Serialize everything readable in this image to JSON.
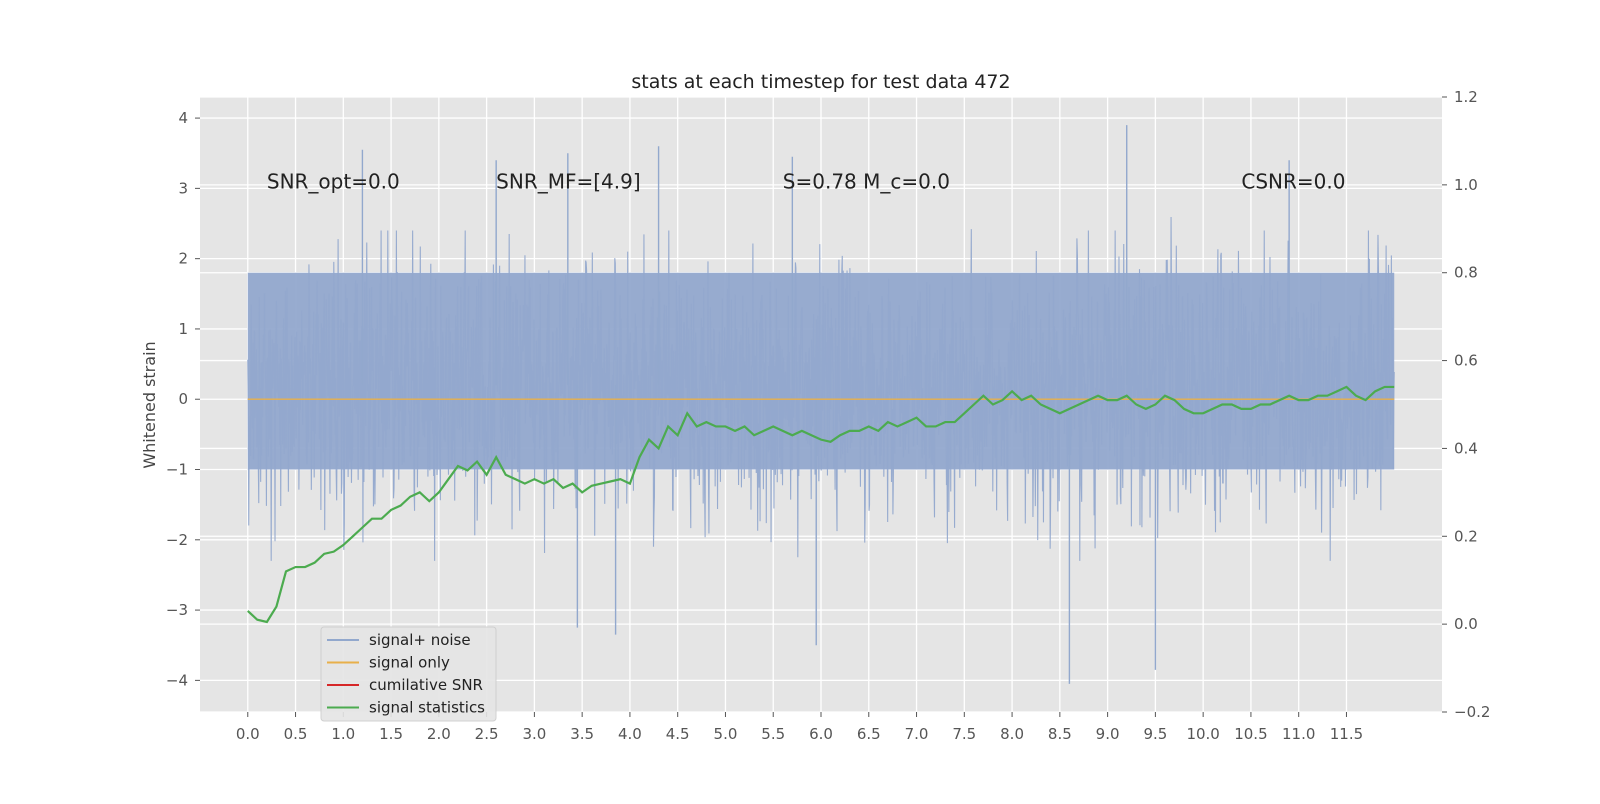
{
  "chart_data": {
    "type": "line",
    "title": "stats at each timestep for test data 472",
    "xlabel": "",
    "ylabel": "Whitened strain",
    "ylabel_right": "",
    "xlim": [
      -0.5,
      12.5
    ],
    "ylim": [
      -4.45,
      4.3
    ],
    "ylim_right": [
      -0.2,
      1.2
    ],
    "x_ticks": [
      "0.0",
      "0.5",
      "1.0",
      "1.5",
      "2.0",
      "2.5",
      "3.0",
      "3.5",
      "4.0",
      "4.5",
      "5.0",
      "5.5",
      "6.0",
      "6.5",
      "7.0",
      "7.5",
      "8.0",
      "8.5",
      "9.0",
      "9.5",
      "10.0",
      "10.5",
      "11.0",
      "11.5"
    ],
    "y_ticks": [
      4,
      3,
      2,
      1,
      0,
      -1,
      -2,
      -3,
      -4
    ],
    "y_ticks_labels": [
      "4",
      "3",
      "2",
      "1",
      "0",
      "−1",
      "−2",
      "−3",
      "−4"
    ],
    "y_right_ticks": [
      1.2,
      1.0,
      0.8,
      0.6,
      0.4,
      0.2,
      0.0,
      -0.2
    ],
    "y_right_ticks_labels": [
      "1.2",
      "1.0",
      "0.8",
      "0.6",
      "0.4",
      "0.2",
      "0.0",
      "−0.2"
    ],
    "grid": true,
    "legend_placement": "lower-left",
    "annotations": [
      {
        "id": "snr-opt",
        "text": "SNR_opt=0.0"
      },
      {
        "id": "snr-mf",
        "text": "SNR_MF=[4.9]"
      },
      {
        "id": "s-mc",
        "text": "S=0.78   M_c=0.0"
      },
      {
        "id": "csnr",
        "text": "CSNR=0.0"
      }
    ],
    "series": [
      {
        "name": "signal+ noise",
        "color": "#92a8cd",
        "axis": "left",
        "x_range": [
          0.0,
          12.0
        ],
        "noise_envelope": {
          "typical_max": 2.4,
          "typical_min": -2.3,
          "dense_band": [
            -1.0,
            1.8
          ]
        },
        "peaks": [
          {
            "x": 1.2,
            "y": 3.55
          },
          {
            "x": 2.6,
            "y": 3.4
          },
          {
            "x": 3.35,
            "y": 3.5
          },
          {
            "x": 4.3,
            "y": 3.6
          },
          {
            "x": 5.7,
            "y": 3.45
          },
          {
            "x": 9.2,
            "y": 3.9
          },
          {
            "x": 10.9,
            "y": 3.4
          },
          {
            "x": 8.6,
            "y": -4.05
          },
          {
            "x": 9.5,
            "y": -3.85
          },
          {
            "x": 3.85,
            "y": -3.35
          },
          {
            "x": 3.45,
            "y": -3.25
          },
          {
            "x": 5.95,
            "y": -3.5
          }
        ]
      },
      {
        "name": "signal only",
        "color": "#e8b04a",
        "axis": "left",
        "x": [
          0.0,
          12.0
        ],
        "values": [
          0.0,
          0.0
        ]
      },
      {
        "name": "cumilative SNR",
        "color": "#d62728",
        "axis": "left",
        "x": [],
        "values": []
      },
      {
        "name": "signal statistics",
        "color": "#4cab4f",
        "axis": "right",
        "x": [
          0.0,
          0.1,
          0.2,
          0.3,
          0.4,
          0.5,
          0.6,
          0.7,
          0.8,
          0.9,
          1.0,
          1.1,
          1.2,
          1.3,
          1.4,
          1.5,
          1.6,
          1.7,
          1.8,
          1.9,
          2.0,
          2.1,
          2.2,
          2.3,
          2.4,
          2.5,
          2.6,
          2.7,
          2.8,
          2.9,
          3.0,
          3.1,
          3.2,
          3.3,
          3.4,
          3.5,
          3.6,
          3.7,
          3.8,
          3.9,
          4.0,
          4.1,
          4.2,
          4.3,
          4.4,
          4.5,
          4.6,
          4.7,
          4.8,
          4.9,
          5.0,
          5.1,
          5.2,
          5.3,
          5.4,
          5.5,
          5.6,
          5.7,
          5.8,
          5.9,
          6.0,
          6.1,
          6.2,
          6.3,
          6.4,
          6.5,
          6.6,
          6.7,
          6.8,
          6.9,
          7.0,
          7.1,
          7.2,
          7.3,
          7.4,
          7.5,
          7.6,
          7.7,
          7.8,
          7.9,
          8.0,
          8.1,
          8.2,
          8.3,
          8.4,
          8.5,
          8.6,
          8.7,
          8.8,
          8.9,
          9.0,
          9.1,
          9.2,
          9.3,
          9.4,
          9.5,
          9.6,
          9.7,
          9.8,
          9.9,
          10.0,
          10.1,
          10.2,
          10.3,
          10.4,
          10.5,
          10.6,
          10.7,
          10.8,
          10.9,
          11.0,
          11.1,
          11.2,
          11.3,
          11.4,
          11.5,
          11.6,
          11.7,
          11.8,
          11.9,
          12.0
        ],
        "values": [
          0.03,
          0.01,
          0.005,
          0.04,
          0.12,
          0.13,
          0.13,
          0.14,
          0.16,
          0.165,
          0.18,
          0.2,
          0.22,
          0.24,
          0.24,
          0.26,
          0.27,
          0.29,
          0.3,
          0.28,
          0.3,
          0.33,
          0.36,
          0.35,
          0.37,
          0.34,
          0.38,
          0.34,
          0.33,
          0.32,
          0.33,
          0.32,
          0.33,
          0.31,
          0.32,
          0.3,
          0.315,
          0.32,
          0.325,
          0.33,
          0.32,
          0.38,
          0.42,
          0.4,
          0.45,
          0.43,
          0.48,
          0.45,
          0.46,
          0.45,
          0.45,
          0.44,
          0.45,
          0.43,
          0.44,
          0.45,
          0.44,
          0.43,
          0.44,
          0.43,
          0.42,
          0.415,
          0.43,
          0.44,
          0.44,
          0.45,
          0.44,
          0.46,
          0.45,
          0.46,
          0.47,
          0.45,
          0.45,
          0.46,
          0.46,
          0.48,
          0.5,
          0.52,
          0.5,
          0.51,
          0.53,
          0.51,
          0.52,
          0.5,
          0.49,
          0.48,
          0.49,
          0.5,
          0.51,
          0.52,
          0.51,
          0.51,
          0.52,
          0.5,
          0.49,
          0.5,
          0.52,
          0.51,
          0.49,
          0.48,
          0.48,
          0.49,
          0.5,
          0.5,
          0.49,
          0.49,
          0.5,
          0.5,
          0.51,
          0.52,
          0.51,
          0.51,
          0.52,
          0.52,
          0.53,
          0.54,
          0.52,
          0.51,
          0.53,
          0.54,
          0.54
        ]
      }
    ],
    "legend": [
      {
        "label": "signal+ noise",
        "color": "#92a8cd"
      },
      {
        "label": "signal only",
        "color": "#e8b04a"
      },
      {
        "label": "cumilative SNR",
        "color": "#d62728"
      },
      {
        "label": "signal statistics",
        "color": "#4cab4f"
      }
    ]
  }
}
